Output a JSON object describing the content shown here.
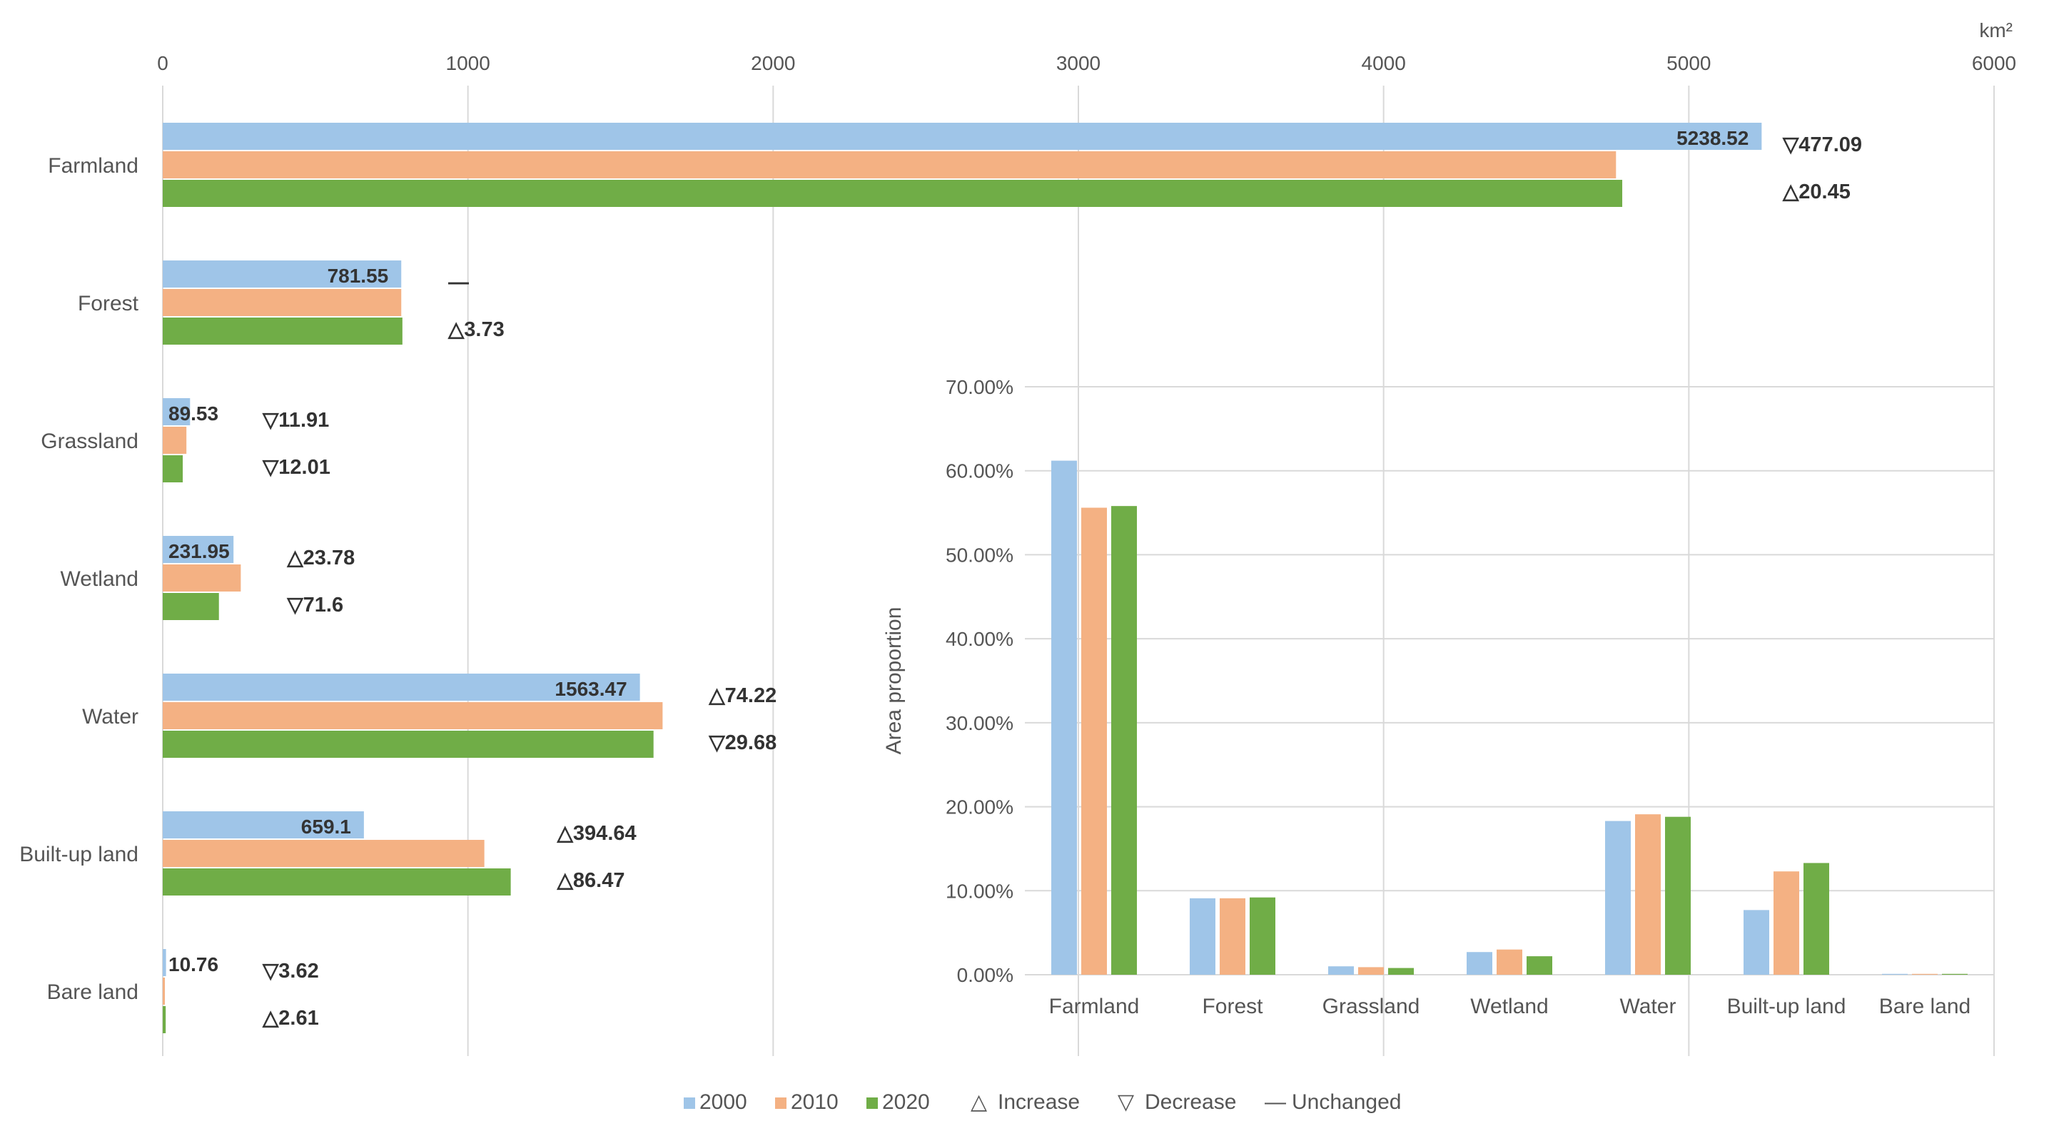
{
  "chart_data": [
    {
      "type": "bar",
      "orientation": "horizontal",
      "unit_label": "km²",
      "xlim": [
        0,
        6000
      ],
      "x_ticks": [
        "0",
        "1000",
        "2000",
        "3000",
        "4000",
        "5000",
        "6000"
      ],
      "categories": [
        "Farmland",
        "Forest",
        "Grassland",
        "Wetland",
        "Water",
        "Built-up land",
        "Bare land"
      ],
      "series": [
        {
          "name": "2000",
          "color": "#9fc5e8",
          "values": [
            5238.52,
            781.55,
            89.53,
            231.95,
            1563.47,
            659.1,
            10.76
          ]
        },
        {
          "name": "2010",
          "color": "#f4b183",
          "values": [
            4761.43,
            781.55,
            77.62,
            255.73,
            1637.69,
            1053.74,
            7.14
          ]
        },
        {
          "name": "2020",
          "color": "#70ad47",
          "values": [
            4781.88,
            785.28,
            65.61,
            184.13,
            1608.01,
            1140.21,
            9.75
          ]
        }
      ],
      "data_labels": [
        "5238.52",
        "781.55",
        "89.53",
        "231.95",
        "1563.47",
        "659.1",
        "10.76"
      ],
      "changes": [
        [
          {
            "symbol": "▽",
            "value": "477.09"
          },
          {
            "symbol": "△",
            "value": "20.45"
          }
        ],
        [
          {
            "symbol": "—",
            "value": ""
          },
          {
            "symbol": "△",
            "value": "3.73"
          }
        ],
        [
          {
            "symbol": "▽",
            "value": "11.91"
          },
          {
            "symbol": "▽",
            "value": "12.01"
          }
        ],
        [
          {
            "symbol": "△",
            "value": "23.78"
          },
          {
            "symbol": "▽",
            "value": "71.6"
          }
        ],
        [
          {
            "symbol": "△",
            "value": "74.22"
          },
          {
            "symbol": "▽",
            "value": "29.68"
          }
        ],
        [
          {
            "symbol": "△",
            "value": "394.64"
          },
          {
            "symbol": "△",
            "value": "86.47"
          }
        ],
        [
          {
            "symbol": "▽",
            "value": "3.62"
          },
          {
            "symbol": "△",
            "value": "2.61"
          }
        ]
      ],
      "grid": true
    },
    {
      "type": "bar",
      "orientation": "vertical",
      "ylabel": "Area proportion",
      "ylim": [
        0,
        70
      ],
      "y_ticks": [
        "0.00%",
        "10.00%",
        "20.00%",
        "30.00%",
        "40.00%",
        "50.00%",
        "60.00%",
        "70.00%"
      ],
      "categories": [
        "Farmland",
        "Forest",
        "Grassland",
        "Wetland",
        "Water",
        "Built-up land",
        "Bare land"
      ],
      "series": [
        {
          "name": "2000",
          "color": "#9fc5e8",
          "values": [
            61.2,
            9.1,
            1.0,
            2.7,
            18.3,
            7.7,
            0.1
          ]
        },
        {
          "name": "2010",
          "color": "#f4b183",
          "values": [
            55.6,
            9.1,
            0.9,
            3.0,
            19.1,
            12.3,
            0.1
          ]
        },
        {
          "name": "2020",
          "color": "#70ad47",
          "values": [
            55.8,
            9.2,
            0.8,
            2.2,
            18.8,
            13.3,
            0.1
          ]
        }
      ],
      "grid": true
    }
  ],
  "legend": {
    "series": [
      {
        "label": "2000",
        "color": "#9fc5e8"
      },
      {
        "label": "2010",
        "color": "#f4b183"
      },
      {
        "label": "2020",
        "color": "#70ad47"
      }
    ],
    "symbols": [
      {
        "symbol": "△",
        "label": "Increase"
      },
      {
        "symbol": "▽",
        "label": "Decrease"
      },
      {
        "symbol": "—",
        "label": "Unchanged"
      }
    ]
  }
}
